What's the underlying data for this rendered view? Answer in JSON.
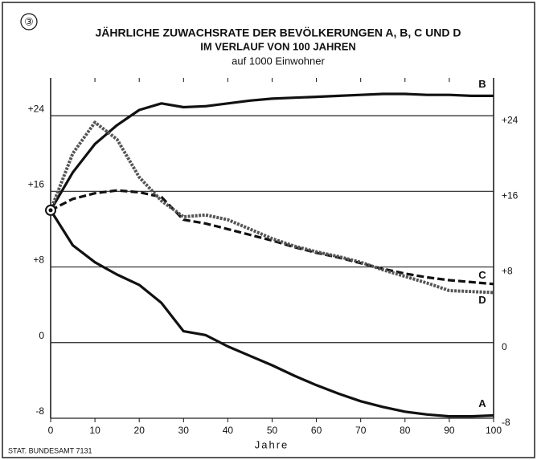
{
  "chart_data": {
    "type": "line",
    "figure_number": "③",
    "title": "JÄHRLICHE ZUWACHSRATE DER BEVÖLKERUNGEN A, B, C UND D",
    "subtitle": "IM VERLAUF VON 100 JAHREN",
    "unit_note": "auf 1000 Einwohner",
    "x_label": "Jahre",
    "source": "STAT. BUNDESAMT 7131",
    "x": [
      0,
      5,
      10,
      15,
      20,
      25,
      30,
      35,
      40,
      45,
      50,
      55,
      60,
      65,
      70,
      75,
      80,
      85,
      90,
      95,
      100
    ],
    "xlim": [
      0,
      100
    ],
    "xticks": [
      0,
      10,
      20,
      30,
      40,
      50,
      60,
      70,
      80,
      90,
      100
    ],
    "ylim": [
      -8,
      28
    ],
    "yticks": [
      -8,
      0,
      {
        "value": 8,
        "label": "+8"
      },
      {
        "value": 16,
        "label": "+16"
      },
      {
        "value": 24,
        "label": "+24"
      }
    ],
    "grid": true,
    "series": [
      {
        "name": "B",
        "color": "#111111",
        "line_style": "solid",
        "values": [
          14,
          18,
          21,
          23,
          24.6,
          25.3,
          24.9,
          25,
          25.3,
          25.6,
          25.8,
          25.9,
          26,
          26.1,
          26.2,
          26.3,
          26.3,
          26.2,
          26.2,
          26.1,
          26.1
        ]
      },
      {
        "name": "C",
        "color": "#111111",
        "line_style": "dashed",
        "values": [
          14,
          15.2,
          15.8,
          16.1,
          15.9,
          15.4,
          13,
          12.6,
          12,
          11.4,
          10.8,
          10.1,
          9.5,
          9,
          8.4,
          7.8,
          7.3,
          6.9,
          6.6,
          6.4,
          6.2
        ]
      },
      {
        "name": "D",
        "color": "#555555",
        "line_style": "squares",
        "values": [
          14,
          20,
          23.3,
          21.5,
          17.5,
          15,
          13.3,
          13.5,
          13,
          12,
          11,
          10.2,
          9.6,
          9.1,
          8.5,
          7.7,
          7,
          6.3,
          5.5,
          5.4,
          5.3
        ]
      },
      {
        "name": "A",
        "color": "#111111",
        "line_style": "solid",
        "values": [
          14,
          10.3,
          8.5,
          7.2,
          6.1,
          4.2,
          1.2,
          0.8,
          -0.4,
          -1.4,
          -2.4,
          -3.5,
          -4.5,
          -5.4,
          -6.2,
          -6.8,
          -7.3,
          -7.6,
          -7.8,
          -7.8,
          -7.7
        ]
      }
    ]
  }
}
